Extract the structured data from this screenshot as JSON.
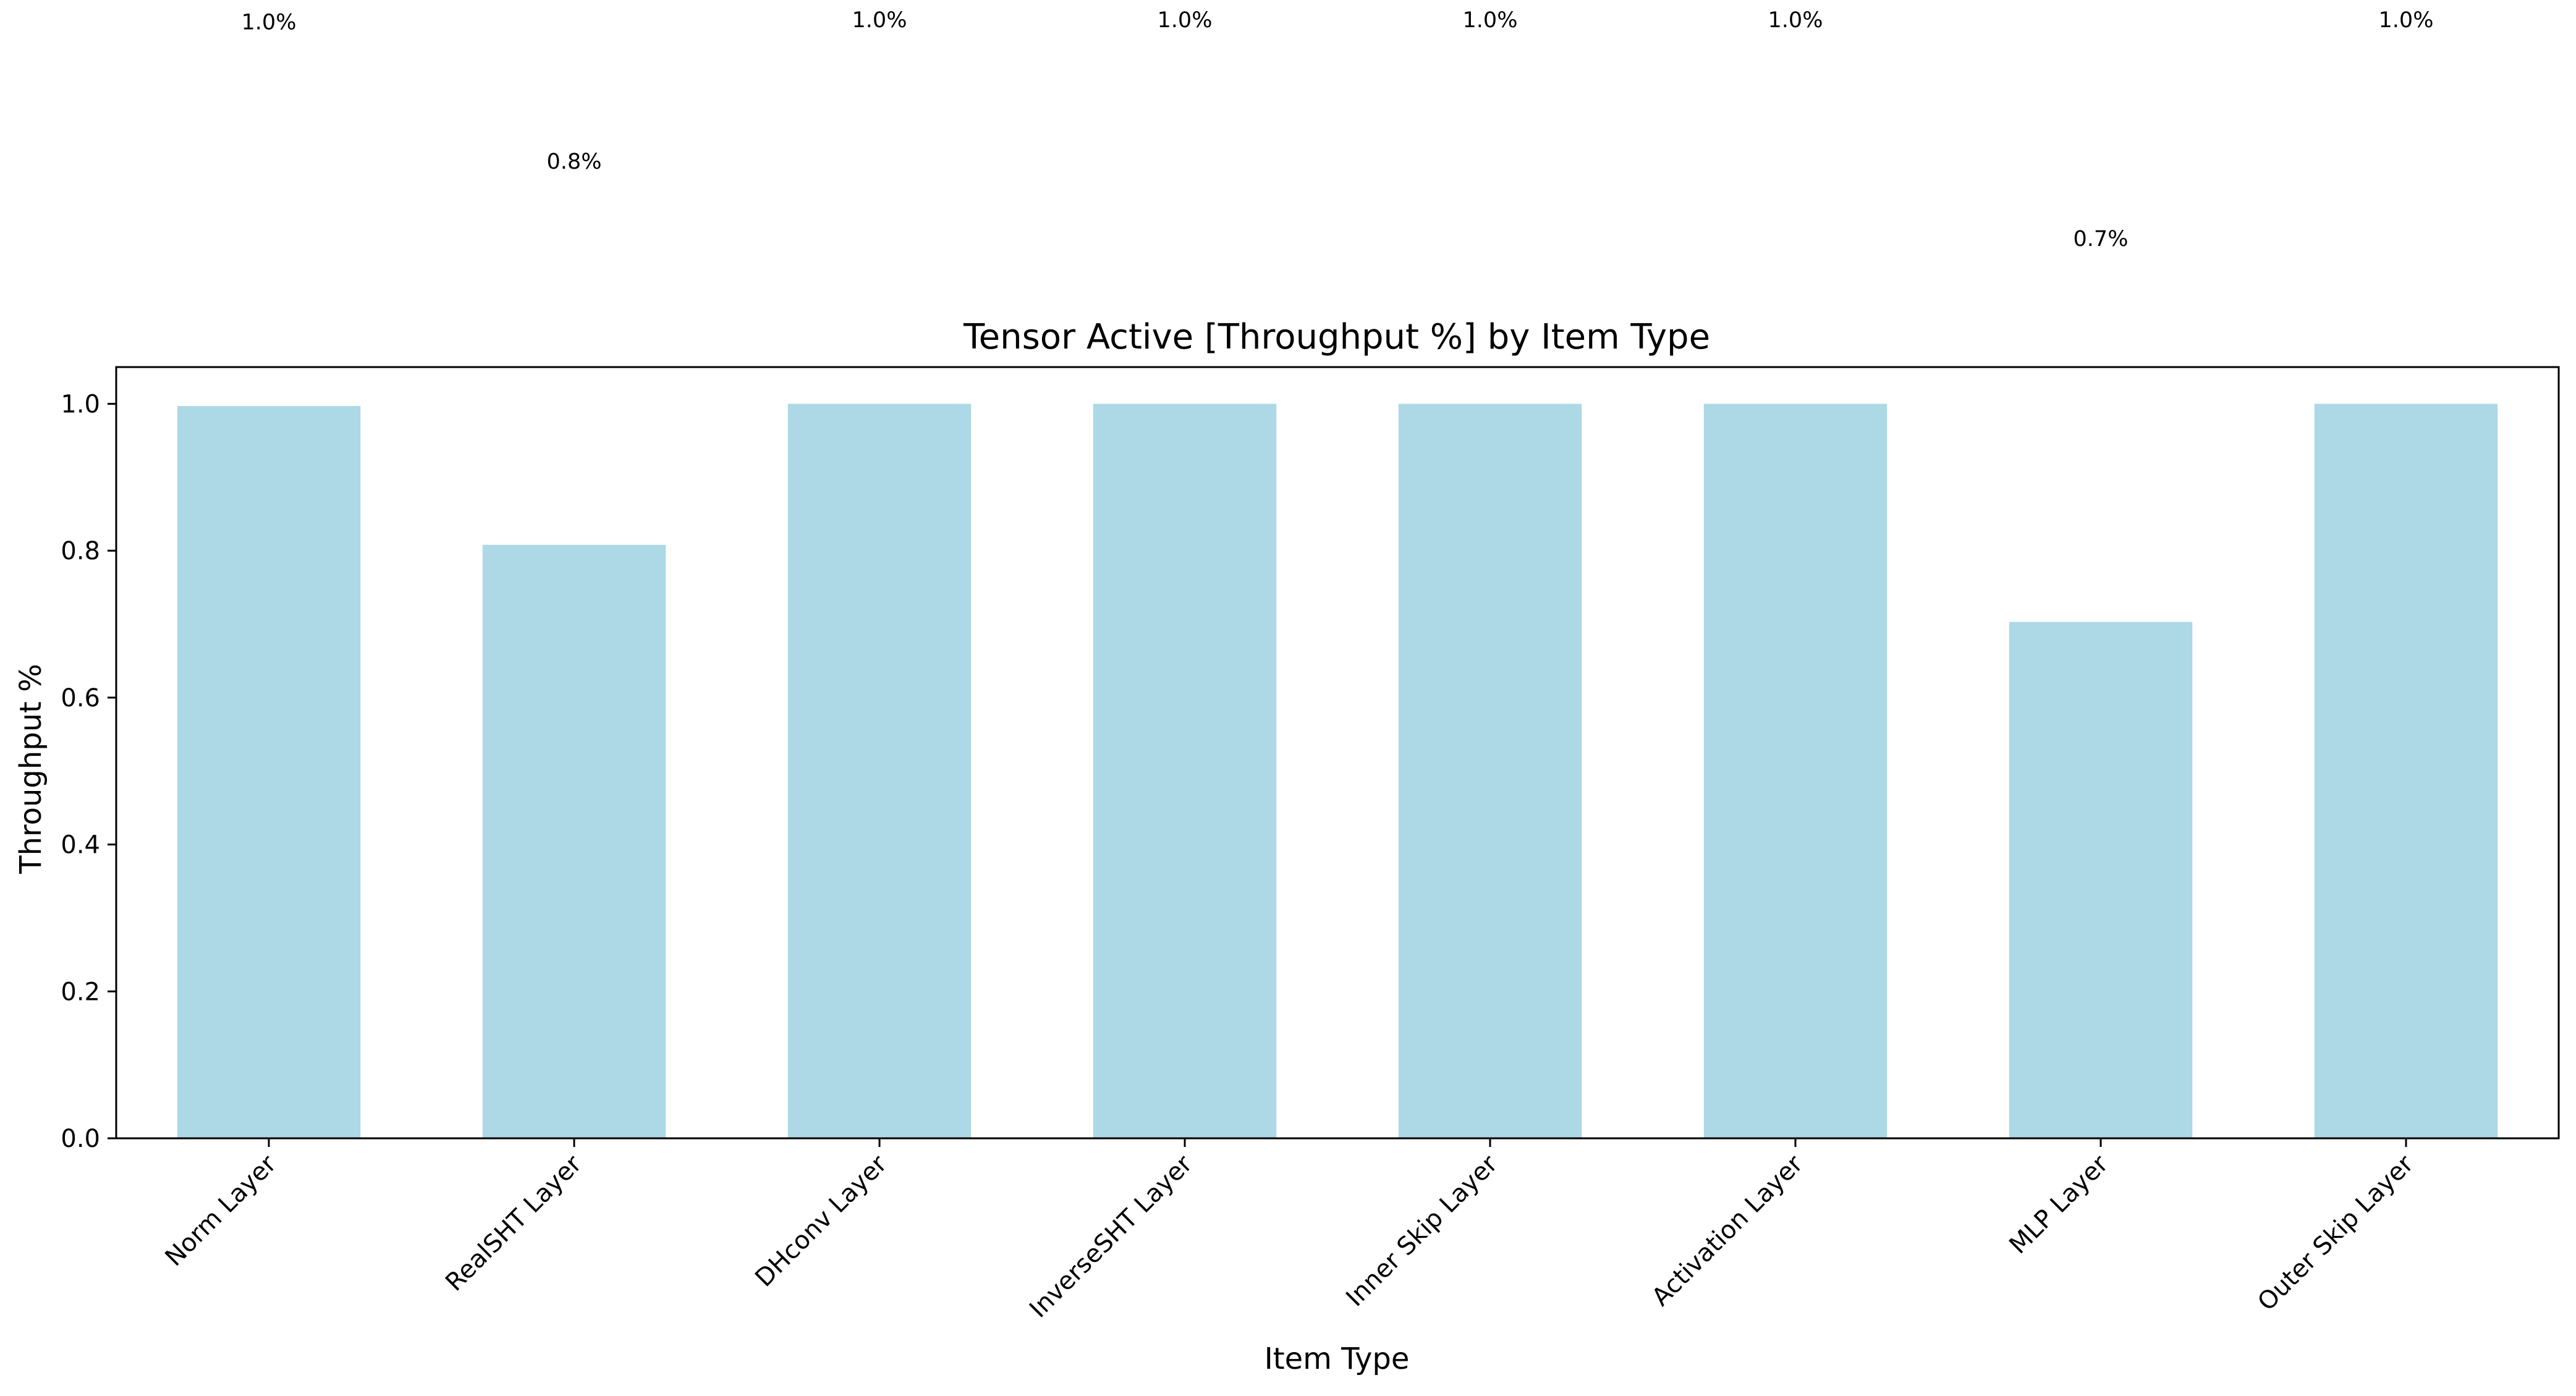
{
  "chart_data": {
    "type": "bar",
    "title": "Tensor Active [Throughput %] by Item Type",
    "xlabel": "Item Type",
    "ylabel": "Throughput %",
    "categories": [
      "Norm Layer",
      "RealSHT Layer",
      "DHconv Layer",
      "InverseSHT Layer",
      "Inner Skip Layer",
      "Activation Layer",
      "MLP Layer",
      "Outer Skip Layer"
    ],
    "values": [
      0.997,
      0.808,
      1.0,
      1.0,
      1.0,
      1.0,
      0.703,
      1.0
    ],
    "value_labels": [
      "1.0%",
      "0.8%",
      "1.0%",
      "1.0%",
      "1.0%",
      "1.0%",
      "0.7%",
      "1.0%"
    ],
    "ylim": [
      0,
      1.05
    ],
    "yticks": [
      0.0,
      0.2,
      0.4,
      0.6,
      0.8,
      1.0
    ],
    "ytick_labels": [
      "0.0",
      "0.2",
      "0.4",
      "0.6",
      "0.8",
      "1.0"
    ],
    "bar_color": "#add8e6",
    "grid": false,
    "legend": "none"
  }
}
